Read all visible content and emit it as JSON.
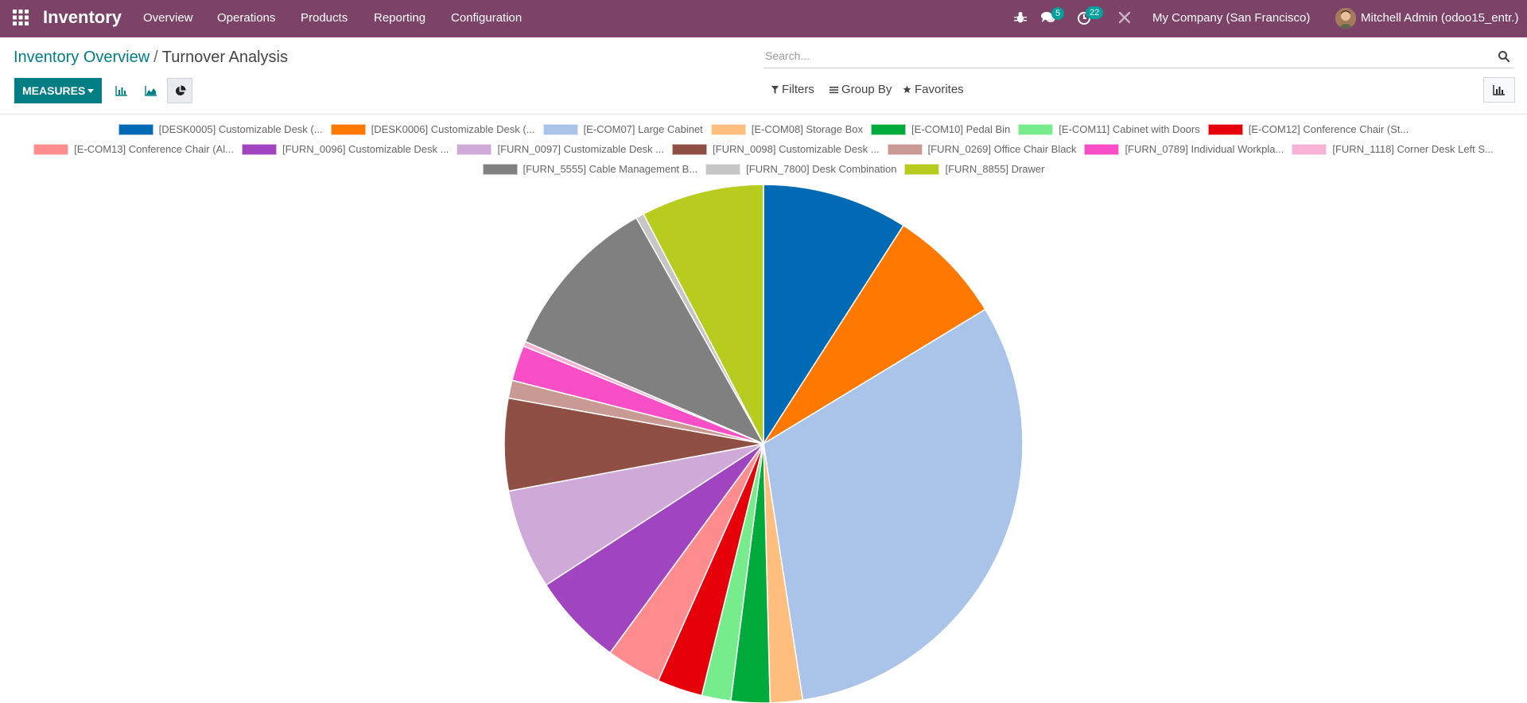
{
  "navbar": {
    "brand": "Inventory",
    "menu": [
      "Overview",
      "Operations",
      "Products",
      "Reporting",
      "Configuration"
    ],
    "messages_badge": "5",
    "activities_badge": "22",
    "company": "My Company (San Francisco)",
    "user": "Mitchell Admin (odoo15_entr.)",
    "color": "#7c4267"
  },
  "breadcrumb": {
    "parent": "Inventory Overview",
    "separator": "/",
    "current": "Turnover Analysis"
  },
  "search": {
    "placeholder": "Search...",
    "value": ""
  },
  "toolbar": {
    "measures_label": "MEASURES",
    "filters_label": "Filters",
    "group_by_label": "Group By",
    "favorites_label": "Favorites",
    "active_view": "pie",
    "accent": "#017e84"
  },
  "chart_data": {
    "type": "pie",
    "legend_position": "top",
    "labels": [
      "[DESK0005] Customizable Desk (...",
      "[DESK0006] Customizable Desk (...",
      "[E-COM07] Large Cabinet",
      "[E-COM08] Storage Box",
      "[E-COM10] Pedal Bin",
      "[E-COM11] Cabinet with Doors",
      "[E-COM12] Conference Chair (St...",
      "[E-COM13] Conference Chair (Al...",
      "[FURN_0096] Customizable Desk ...",
      "[FURN_0097] Customizable Desk ...",
      "[FURN_0098] Customizable Desk ...",
      "[FURN_0269] Office Chair Black",
      "[FURN_0789] Individual Workpla...",
      "[FURN_1118] Corner Desk Left S...",
      "[FURN_5555] Cable Management B...",
      "[FURN_7800] Desk Combination",
      "[FURN_8855] Drawer"
    ],
    "values": [
      9.0,
      7.2,
      31.0,
      2.0,
      2.4,
      1.8,
      2.8,
      3.4,
      5.7,
      6.2,
      5.7,
      1.1,
      2.2,
      0.3,
      10.3,
      0.5,
      7.6
    ],
    "colors": [
      "#006ab5",
      "#ff7800",
      "#aac3e8",
      "#ffbe7d",
      "#00ab3c",
      "#76ec8c",
      "#e6000a",
      "#ff8c8e",
      "#a045bf",
      "#cfaad8",
      "#8f4f44",
      "#c99a94",
      "#f94fc6",
      "#f6b3d6",
      "#808080",
      "#c6c6c6",
      "#b8cb1f"
    ]
  }
}
